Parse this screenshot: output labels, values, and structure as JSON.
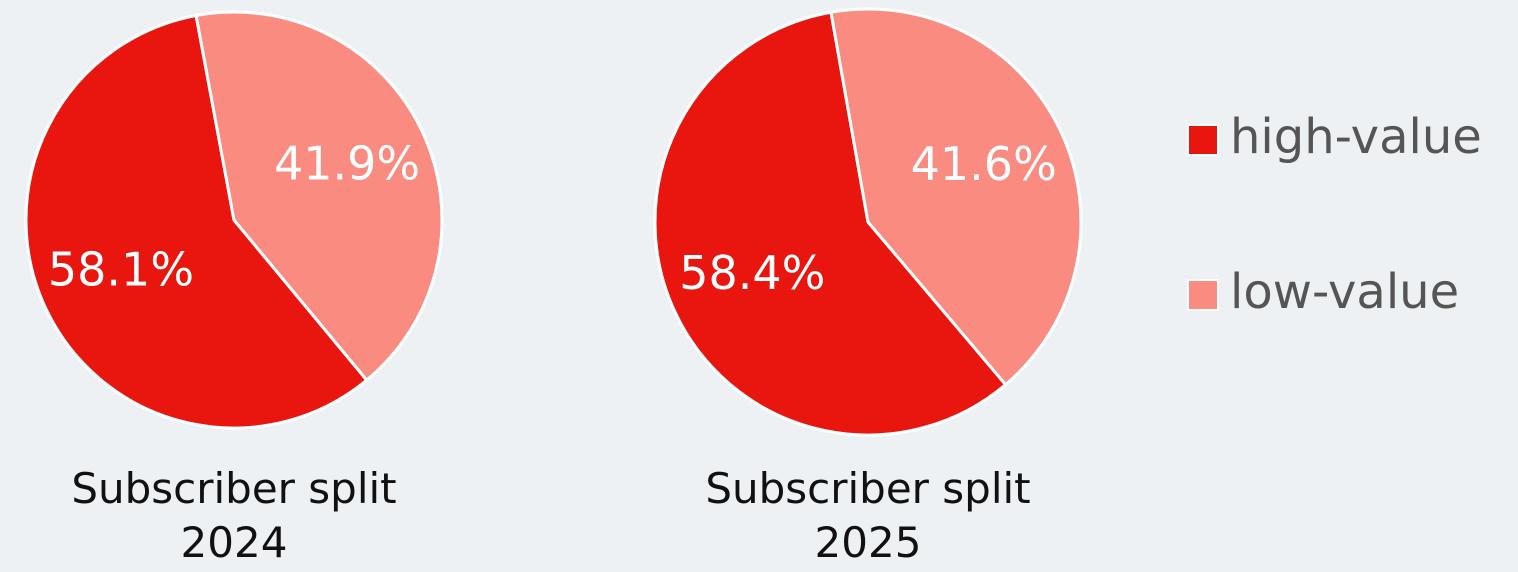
{
  "chart_data": [
    {
      "type": "pie",
      "title": "Subscriber split 2024",
      "categories": [
        "high-value",
        "low-value"
      ],
      "values": [
        58.1,
        41.9
      ],
      "value_labels": [
        "58.1%",
        "41.9%"
      ],
      "colors": [
        "#e8160e",
        "#f98b80"
      ]
    },
    {
      "type": "pie",
      "title": "Subscriber split 2025",
      "categories": [
        "high-value",
        "low-value"
      ],
      "values": [
        58.4,
        41.6
      ],
      "value_labels": [
        "58.4%",
        "41.6%"
      ],
      "colors": [
        "#e8160e",
        "#f98b80"
      ]
    }
  ]
}
